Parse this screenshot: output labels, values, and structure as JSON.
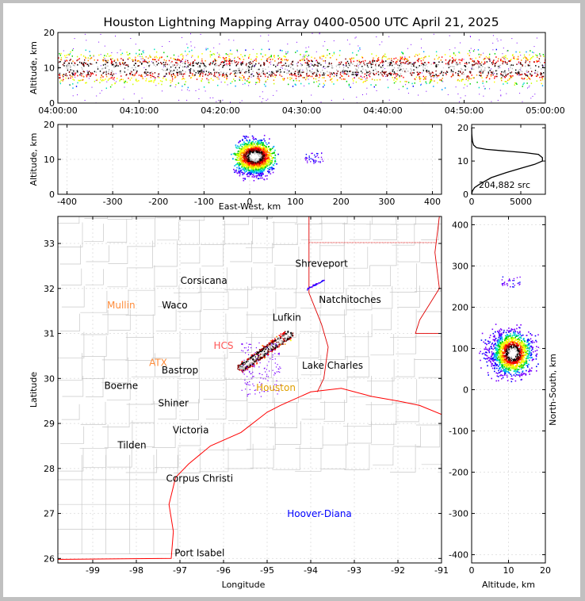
{
  "chart_data": [
    {
      "type": "heatmap",
      "id": "time-altitude",
      "title": "Houston Lightning Mapping Array 0400-0500 UTC April 21, 2025",
      "ylabel": "Altitude, km",
      "ylim": [
        0,
        20
      ],
      "yticks": [
        0,
        10,
        20
      ],
      "xticks": [
        "04:00:00",
        "04:10:00",
        "04:20:00",
        "04:30:00",
        "04:40:00",
        "04:50:00",
        "05:00:00"
      ],
      "band_km": [
        4,
        15
      ],
      "peak_km": [
        7,
        13
      ]
    },
    {
      "type": "heatmap",
      "id": "ew-altitude",
      "xlabel": "East-West, km",
      "ylabel": "Altitude, km",
      "xlim": [
        -420,
        420
      ],
      "ylim": [
        0,
        20
      ],
      "xticks": [
        -400,
        -300,
        -200,
        -100,
        0,
        100,
        200,
        300,
        400
      ],
      "yticks": [
        0,
        10,
        20
      ],
      "core_x_km": [
        -60,
        80
      ],
      "secondary_x_km": [
        120,
        160
      ]
    },
    {
      "type": "line",
      "id": "altitude-histogram",
      "annotation": "204,882 src",
      "xlim": [
        0,
        7500
      ],
      "ylim": [
        0,
        21
      ],
      "xticks": [
        0,
        5000
      ],
      "yticks": [
        0,
        10,
        20
      ],
      "x": [
        0,
        80,
        300,
        800,
        2000,
        3500,
        5000,
        6400,
        7200,
        7200,
        6800,
        5500,
        3500,
        1500,
        500,
        200,
        80,
        20,
        0
      ],
      "y": [
        0,
        1,
        2,
        3,
        5,
        6.5,
        7.8,
        9,
        10,
        11,
        12,
        12.5,
        13,
        13.5,
        14,
        14.8,
        16,
        18,
        20
      ]
    },
    {
      "type": "scatter",
      "id": "plan-map",
      "xlabel": "Longitude",
      "ylabel": "Latitude",
      "xlim": [
        -99.8,
        -91
      ],
      "ylim": [
        25.9,
        33.6
      ],
      "xticks": [
        -99,
        -98,
        -97,
        -96,
        -95,
        -94,
        -93,
        -92,
        -91
      ],
      "yticks": [
        26,
        27,
        28,
        29,
        30,
        31,
        32,
        33
      ],
      "cities": [
        {
          "name": "Shreveport",
          "lon": -93.75,
          "lat": 32.55,
          "color": "#000000"
        },
        {
          "name": "Corsicana",
          "lon": -96.45,
          "lat": 32.17,
          "color": "#000000"
        },
        {
          "name": "Natchitoches",
          "lon": -93.1,
          "lat": 31.75,
          "color": "#000000"
        },
        {
          "name": "Mullin",
          "lon": -98.35,
          "lat": 31.63,
          "color": "#ff8c3a"
        },
        {
          "name": "Waco",
          "lon": -97.12,
          "lat": 31.63,
          "color": "#000000"
        },
        {
          "name": "Lufkin",
          "lon": -94.55,
          "lat": 31.35,
          "color": "#000000"
        },
        {
          "name": "HCS",
          "lon": -96.0,
          "lat": 30.73,
          "color": "#ff5555"
        },
        {
          "name": "ATX",
          "lon": -97.5,
          "lat": 30.35,
          "color": "#ff8c3a"
        },
        {
          "name": "Bastrop",
          "lon": -97.0,
          "lat": 30.18,
          "color": "#000000"
        },
        {
          "name": "Lake Charles",
          "lon": -93.5,
          "lat": 30.29,
          "color": "#000000"
        },
        {
          "name": "Boerne",
          "lon": -98.35,
          "lat": 29.84,
          "color": "#000000"
        },
        {
          "name": "Houston",
          "lon": -94.8,
          "lat": 29.79,
          "color": "#e0a000"
        },
        {
          "name": "Shiner",
          "lon": -97.15,
          "lat": 29.45,
          "color": "#000000"
        },
        {
          "name": "Victoria",
          "lon": -96.75,
          "lat": 28.85,
          "color": "#000000"
        },
        {
          "name": "Tilden",
          "lon": -98.1,
          "lat": 28.52,
          "color": "#000000"
        },
        {
          "name": "Corpus Christi",
          "lon": -96.55,
          "lat": 27.78,
          "color": "#000000"
        },
        {
          "name": "Hoover-Diana",
          "lon": -93.8,
          "lat": 26.99,
          "color": "#0000ff"
        },
        {
          "name": "Port Isabel",
          "lon": -96.55,
          "lat": 26.12,
          "color": "#000000"
        }
      ],
      "storm_line": {
        "from": [
          -95.6,
          30.25
        ],
        "to": [
          -94.5,
          31.0
        ]
      },
      "outlier_cluster": {
        "lon": [
          -94.1,
          -93.7
        ],
        "lat": [
          32.0,
          32.2
        ]
      }
    },
    {
      "type": "heatmap",
      "id": "altitude-ns",
      "xlabel": "Altitude, km",
      "ylabel": "North-South, km",
      "xlim": [
        0,
        20
      ],
      "ylim": [
        -420,
        420
      ],
      "xticks": [
        0,
        10,
        20
      ],
      "yticks": [
        -400,
        -300,
        -200,
        -100,
        0,
        100,
        200,
        300,
        400
      ],
      "core_ns_km": [
        30,
        150
      ],
      "secondary_ns_km": [
        250,
        270
      ]
    }
  ],
  "palette": [
    "#7a00ff",
    "#0000ff",
    "#00a0ff",
    "#00e0c0",
    "#00d000",
    "#c8ff00",
    "#ffff00",
    "#ff9000",
    "#ff0000",
    "#800000",
    "#000000",
    "#bdbdbd",
    "#ffffff"
  ],
  "map_colors": {
    "counties": "#c8c8c8",
    "coast": "#ff0000",
    "border": "#e00000"
  }
}
